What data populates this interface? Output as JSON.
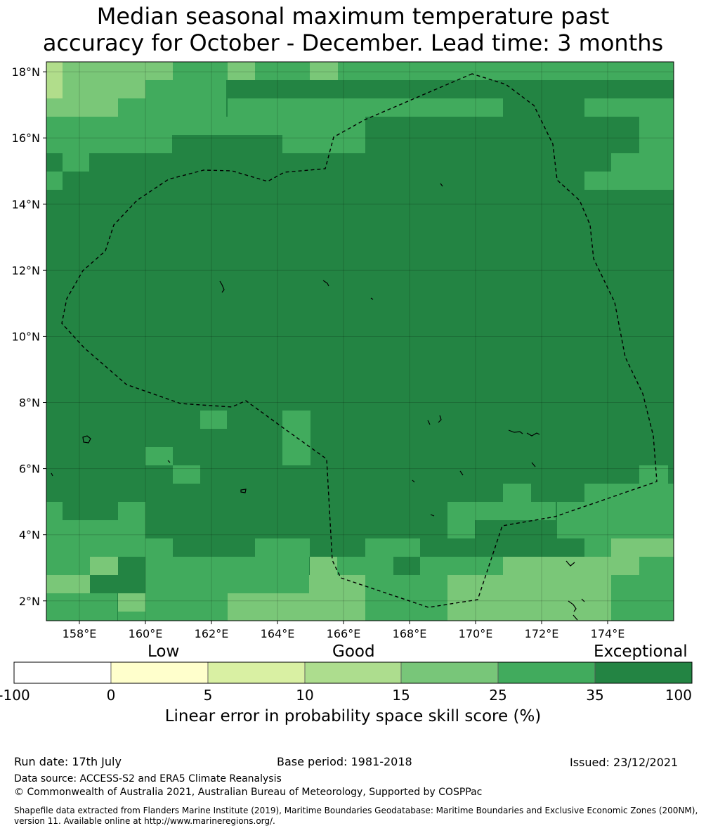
{
  "title": {
    "line1": "Median seasonal maximum temperature past",
    "line2": "accuracy for October - December. Lead time: 3 months"
  },
  "map": {
    "lon_range": [
      157.0,
      176.0
    ],
    "lat_range": [
      1.4,
      18.3
    ],
    "cell_size_deg": 0.833,
    "lon_ticks": [
      "158°E",
      "160°E",
      "162°E",
      "164°E",
      "166°E",
      "168°E",
      "170°E",
      "172°E",
      "174°E"
    ],
    "lat_ticks": [
      "18°N",
      "16°N",
      "14°N",
      "12°N",
      "10°N",
      "8°N",
      "6°N",
      "4°N",
      "2°N"
    ],
    "gridlines": true,
    "boundary": "dashed EEZ outline",
    "category_colors": {
      "a": "#b1dd8b",
      "b": "#7ac778",
      "c": "#41ab5d",
      "d": "#238443"
    }
  },
  "colorbar": {
    "words": [
      "Low",
      "Good",
      "Exceptional"
    ],
    "ticks": [
      "-100",
      "0",
      "5",
      "10",
      "15",
      "25",
      "35",
      "100"
    ],
    "colors": [
      "#ffffff",
      "#ffffcc",
      "#d9f0a3",
      "#addd8e",
      "#78c679",
      "#41ab5d",
      "#238443"
    ],
    "label": "Linear error in probability space skill score (%)"
  },
  "footer": {
    "run_date": "Run date: 17th July",
    "base_period": "Base period: 1981-2018",
    "issued": "Issued: 23/12/2021",
    "data_source": "Data source: ACCESS-S2 and ERA5 Climate Reanalysis",
    "copyright": "© Commonwealth of Australia 2021, Australian Bureau of Meteorology, Supported by COSPPac",
    "shapefile": "Shapefile data extracted from Flanders Marine Institute (2019), Maritime Boundaries Geodatabase: Maritime Boundaries and Exclusive Economic Zones (200NM), version 11. Available online at http://www.marineregions.org/."
  }
}
